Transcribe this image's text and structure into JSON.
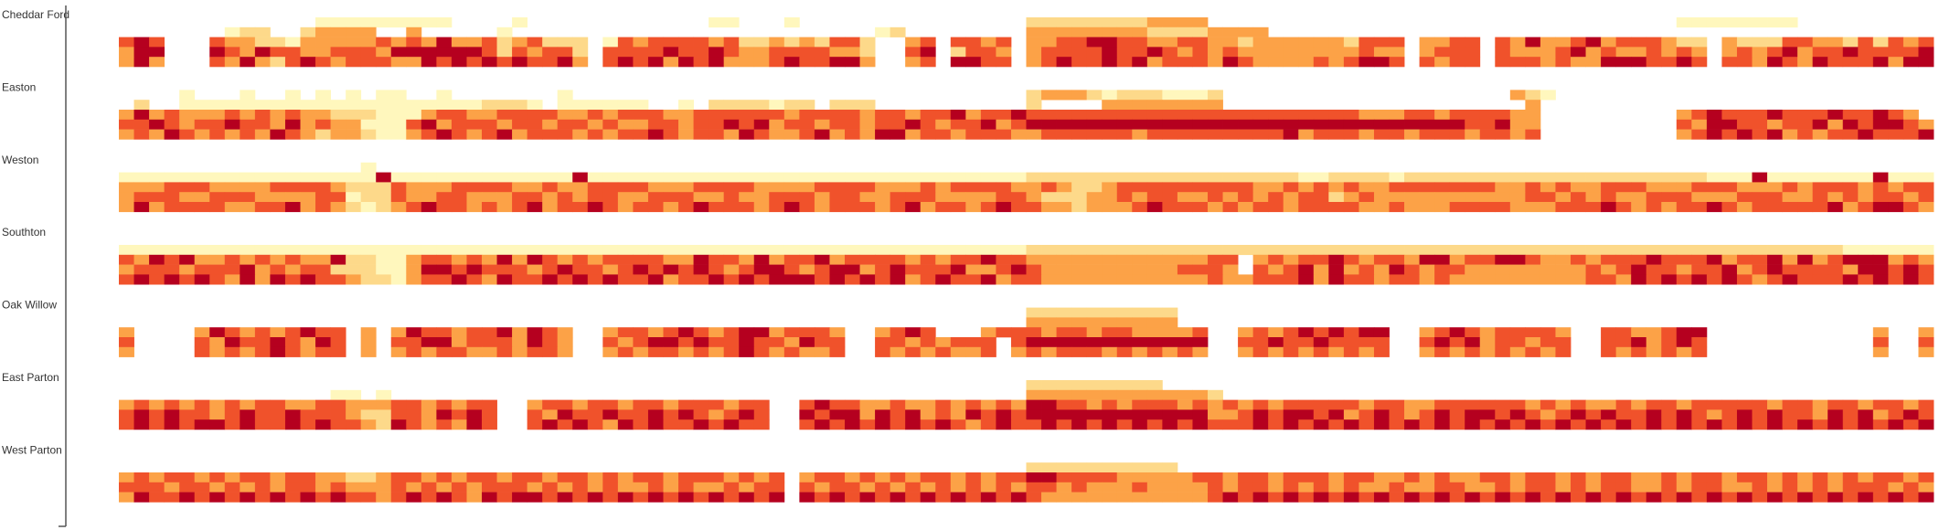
{
  "chart_data": {
    "type": "heatmap",
    "title": "",
    "xlabel": "",
    "ylabel": "",
    "legend": "none",
    "grid": false,
    "n_cols": 120,
    "sites": [
      {
        "name": "Cheddar Ford",
        "rows": [
          "000000000000011111111100001000000000000110001000000000000000222222223333000000000000000000000000000000011111111000000000000",
          "000000012200233330030000010000000000000000000000001200000000333333332222333300000000000000000000000000000000000000000000000",
          "454000433221333334343533423422201434444342232324420034044340334455443344332333333244403344043533453444322032224433242434543",
          "355000543544334443555555424344204444544543344443320045024430344445445434343333333343303444043334534334343034345344544445443",
          "353000435324543444335454545445304545354533345445530034055440345445453444354333343455404344044434335554454044354354445355534"
        ]
      },
      {
        "name": "Easton",
        "rows": [
          "000010001001010101100100000001000000000000000000000000000000233321222111200000000000000000003210000000000000000000000000000",
          "020011111111111111111111222101111110010222212202220000000000200003333333300000000000000000000300000000000000000000000000000",
          "353433343434332221113443344443343444334444443444434434453445444444444444444444444433344344443300000000034544454445445430000",
          "445434454435343311145344434434434334434454534434434454344534555555555555555555555555555554453300000000043554434453545543000",
          "343543434354323321134543453444343445434435433453435534434443344444434444444445344434434443443400000000034545453434454445440"
        ]
      },
      {
        "name": "Weston",
        "rows": [
          "000000000000000010000000000000000000000000000000000000000000000000000000000000000000000000000000000000000000000000000000000",
          "111111111111111115111111111111511111111111111111111111111111222222222222222222112222122222222222222222222111511111115111111",
          "333444333344443222433344443343344443334444333344443334344443343223444444444334343433444444433434334443334443334344434344444",
          "344433444333344122433443334434344334443343344434433444333344322233434433434343442343333333333443434334443334443343434434434",
          "353444433445343212345443434534454344345444345434443453443454433233345444343443444433433344443334445434344543444445345543434"
        ]
      },
      {
        "name": "Southton",
        "rows": [
          "000000000000000000000000000000000000000000000000000000000000000000000000000000000000000000000000000000000000000000000000000",
          "111111111111111111111111111111111111111111111111111111111111222222222222222222222222222222222222222222222222222222111111111",
          "435453343434335221134434353543434444335443534453444434344544333333333333440343445434435534455433434445444534453534555343454",
          "344434445343442221135545444345443454545434554345534544453345433333333344430434535343543443333333343454434453454444355454344",
          "454545435354544322134454354454545445344545455545454534544534433333333333433444535443443433333333344354545454345444545454545"
        ]
      },
      {
        "name": "Oak Willow",
        "rows": [
          "000000000000000000000000000000000000000000000000000000000000222222222200000000000000000000000000000000000000000000000000000",
          "000000000000000000000000000000000000000000000000000000000000333333333300000000000000000000000000000000000000000000000000000",
          "300003543434544030354434453543003443454345534443003454000344434434433334003434545455003454344443004433455000000000003003430",
          "400004354454354030445534443543004345545445443544004434344404555555555555004454454444004545344344004453454000000000004004340",
          "300004343454344030343443343443003434434345434334004343433403434443434343003434343434003434343434004343434000000000003003440"
        ]
      },
      {
        "name": "East Parton",
        "rows": [
          "000000000000000000000000000000000000000000000000000000000000222222222000000000000000000000000000000000000000000000000000000",
          "000000000000001101000000000000000000000000000000000000000000333333333333200000000000000000000000000000000000000000000000000",
          "343434343443344333443434400344344344344434400454433433434343554434344434343434444434433444444343433434434444434434434434344",
          "454544345445444322443545400435445445454345400545535453435454555555555555334545545345434545545434545445454345454435453454543",
          "454545545445454432543435400454543545445454400454545454543454454545454545444545454545454545454545454545454545454545454545455"
        ]
      },
      {
        "name": "West Parton",
        "rows": [
          "000000000000000000000000000000000000000000000000000000000000000000000000000000000000000000000000000000000000000000000000000",
          "000000000000000000000000000000000000000000000000000000000000222222222200000000000000000000000000000000000000000000000000000",
          "343443434434433223443434434434434344344434340344343434434344554444333334434434443443343433443443434433434434434343434434343",
          "444344343434434333434343444343434334343343440434434343434343443433343333434434343433433443343443434433434433434343444343434",
          "354454545454545443454543545545454545454545450545454545454545433333333333454545454545454545454545454545454545454545454545454"
        ]
      }
    ],
    "colors": {
      "0": "#ffffff",
      "1": "#fff7bd",
      "2": "#fdd98a",
      "3": "#fca247",
      "4": "#f0522b",
      "5": "#b5001f"
    },
    "axis_color": "#555555",
    "highlight_border": "#b8a070"
  }
}
